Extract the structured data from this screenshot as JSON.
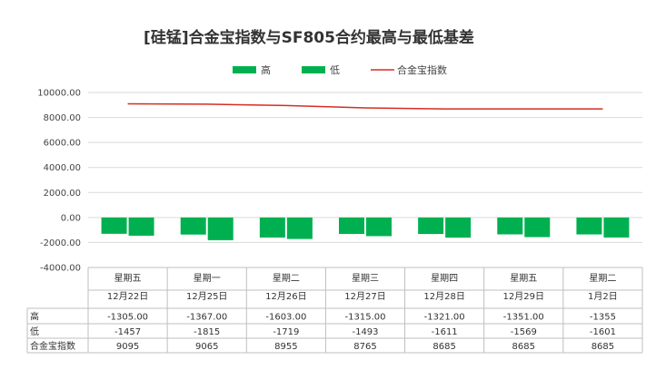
{
  "chart_data": {
    "type": "bar",
    "title": "[硅锰]合金宝指数与SF805合约最高与最低基差",
    "legend": [
      "高",
      "低",
      "合金宝指数"
    ],
    "legend_position": "top",
    "weekdays": [
      "星期五",
      "星期一",
      "星期二",
      "星期三",
      "星期四",
      "星期五",
      "星期二"
    ],
    "dates": [
      "12月22日",
      "12月25日",
      "12月26日",
      "12月27日",
      "12月28日",
      "12月29日",
      "1月2日"
    ],
    "ylim": [
      -4000,
      10000
    ],
    "yticks": [
      "10000.00",
      "8000.00",
      "6000.00",
      "4000.00",
      "2000.00",
      "0.00",
      "-2000.00",
      "-4000.00"
    ],
    "ytick_values": [
      10000,
      8000,
      6000,
      4000,
      2000,
      0,
      -2000,
      -4000
    ],
    "grid": true,
    "series": [
      {
        "name": "高",
        "kind": "bar",
        "color": "#00b050",
        "values": [
          -1305,
          -1367,
          -1603,
          -1315,
          -1321,
          -1351,
          -1355
        ],
        "labels": [
          "-1305.00",
          "-1367.00",
          "-1603.00",
          "-1315.00",
          "-1321.00",
          "-1351.00",
          "-1355"
        ]
      },
      {
        "name": "低",
        "kind": "bar",
        "color": "#00b050",
        "values": [
          -1457,
          -1815,
          -1719,
          -1493,
          -1611,
          -1569,
          -1601
        ],
        "labels": [
          "-1457",
          "-1815",
          "-1719",
          "-1493",
          "-1611",
          "-1569",
          "-1601"
        ]
      },
      {
        "name": "合金宝指数",
        "kind": "line",
        "color": "#d62d20",
        "values": [
          9095,
          9065,
          8955,
          8765,
          8685,
          8685,
          8685
        ],
        "labels": [
          "9095",
          "9065",
          "8955",
          "8765",
          "8685",
          "8685",
          "8685"
        ]
      }
    ]
  }
}
